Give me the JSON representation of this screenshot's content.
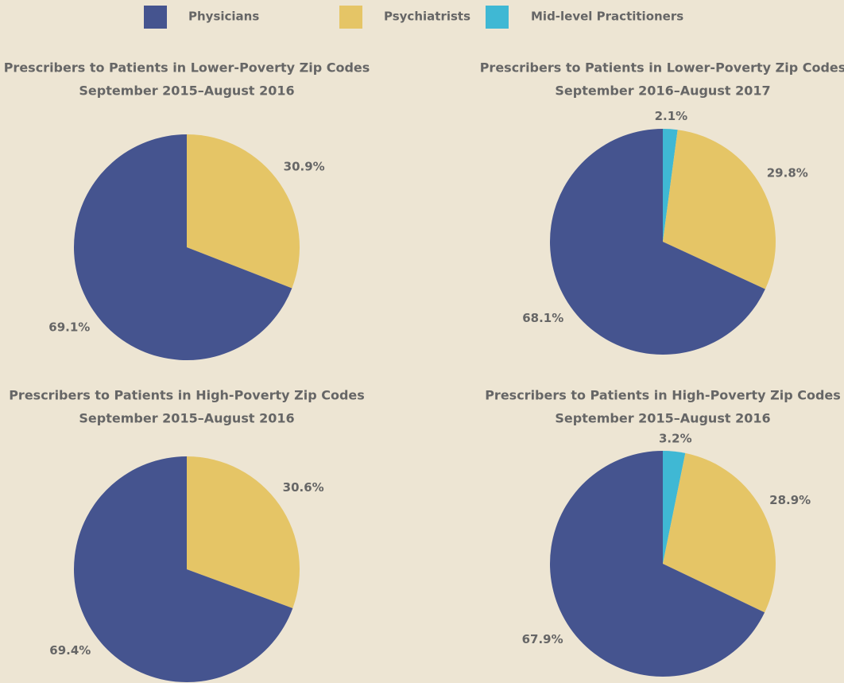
{
  "legend": {
    "items": [
      {
        "name": "Physicians",
        "color": "#45548f"
      },
      {
        "name": "Psychiatrists",
        "color": "#e5c566"
      },
      {
        "name": "Mid-level Practitioners",
        "color": "#3fb8d4"
      }
    ]
  },
  "chart_data": [
    {
      "type": "pie",
      "title": "Prescribers to Patients in Lower-Poverty Zip Codes",
      "subtitle": "September 2015–August 2016",
      "categories": [
        "Psychiatrists",
        "Physicians"
      ],
      "values": [
        30.9,
        69.1
      ],
      "value_labels": [
        "30.9%",
        "69.1%"
      ],
      "colors": [
        "#e5c566",
        "#45548f"
      ]
    },
    {
      "type": "pie",
      "title": "Prescribers to Patients in Lower-Poverty Zip Codes",
      "subtitle": "September 2016–August 2017",
      "categories": [
        "Mid-level Practitioners",
        "Psychiatrists",
        "Physicians"
      ],
      "values": [
        2.1,
        29.8,
        68.1
      ],
      "value_labels": [
        "2.1%",
        "29.8%",
        "68.1%"
      ],
      "colors": [
        "#3fb8d4",
        "#e5c566",
        "#45548f"
      ]
    },
    {
      "type": "pie",
      "title": "Prescribers to Patients in High-Poverty Zip Codes",
      "subtitle": "September 2015–August 2016",
      "categories": [
        "Psychiatrists",
        "Physicians"
      ],
      "values": [
        30.6,
        69.4
      ],
      "value_labels": [
        "30.6%",
        "69.4%"
      ],
      "colors": [
        "#e5c566",
        "#45548f"
      ]
    },
    {
      "type": "pie",
      "title": "Prescribers to Patients in High-Poverty Zip Codes",
      "subtitle": "September 2015–August 2016",
      "categories": [
        "Mid-level Practitioners",
        "Psychiatrists",
        "Physicians"
      ],
      "values": [
        3.2,
        28.9,
        67.9
      ],
      "value_labels": [
        "3.2%",
        "28.9%",
        "67.9%"
      ],
      "colors": [
        "#3fb8d4",
        "#e5c566",
        "#45548f"
      ]
    }
  ]
}
